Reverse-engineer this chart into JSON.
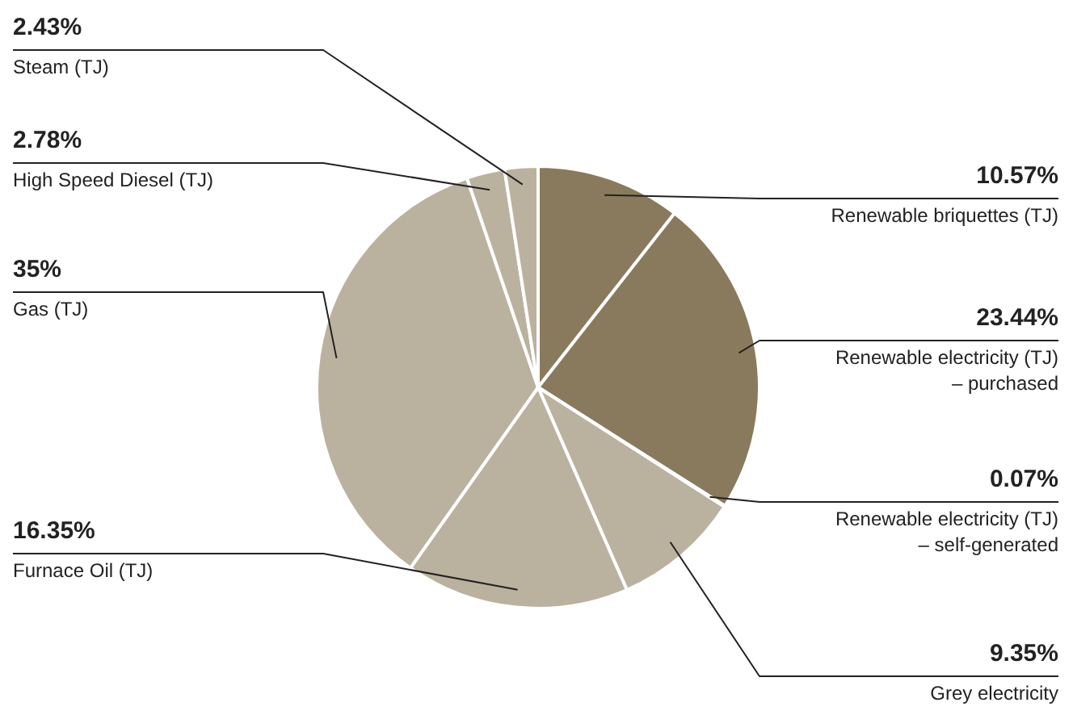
{
  "chart_data": {
    "type": "pie",
    "categories": [
      "Renewable briquettes (TJ)",
      "Renewable electricity (TJ)\n– purchased",
      "Renewable electricity (TJ)\n– self-generated",
      "Grey electricity",
      "Furnace Oil (TJ)",
      "Gas (TJ)",
      "High Speed Diesel (TJ)",
      "Steam (TJ)"
    ],
    "values": [
      10.57,
      23.44,
      0.07,
      9.35,
      16.35,
      35,
      2.78,
      2.43
    ],
    "value_labels": [
      "10.57%",
      "23.44%",
      "0.07%",
      "9.35%",
      "16.35%",
      "35%",
      "2.78%",
      "2.43%"
    ],
    "colors": [
      "#8a7a5d",
      "#8a7a5d",
      "#bbb19f",
      "#bbb19f",
      "#bbb19f",
      "#bbb19f",
      "#bbb19f",
      "#bbb19f"
    ],
    "legend": false
  }
}
